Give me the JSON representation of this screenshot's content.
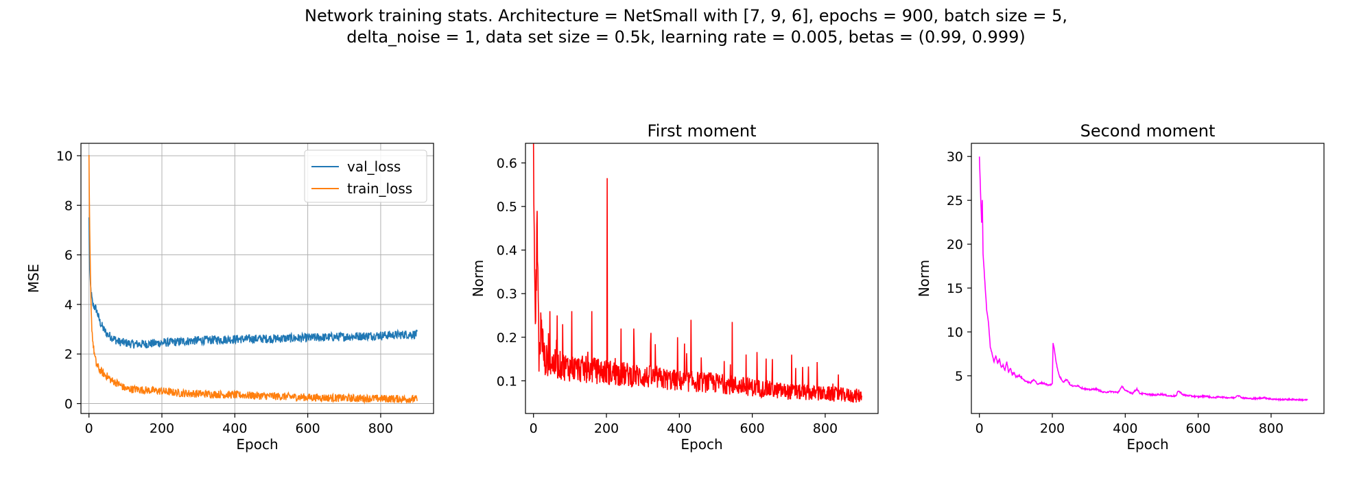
{
  "figure": {
    "suptitle_line1": "Network training stats. Architecture = NetSmall with [7, 9, 6], epochs = 900, batch size = 5,",
    "suptitle_line2": "delta_noise = 1, data set size = 0.5k, learning rate = 0.005, betas = (0.99, 0.999)"
  },
  "chart_data": [
    {
      "type": "line",
      "title": "",
      "xlabel": "Epoch",
      "ylabel": "MSE",
      "xlim": [
        -22,
        945
      ],
      "ylim": [
        -0.4,
        10.5
      ],
      "xticks": [
        0,
        200,
        400,
        600,
        800
      ],
      "yticks": [
        0,
        2,
        4,
        6,
        8,
        10
      ],
      "grid": true,
      "legend": "top-right",
      "series": [
        {
          "name": "val_loss",
          "color": "#1f77b4",
          "x": [
            0,
            2,
            5,
            10,
            15,
            20,
            30,
            40,
            50,
            60,
            80,
            100,
            120,
            150,
            200,
            250,
            300,
            400,
            500,
            600,
            700,
            800,
            900
          ],
          "y": [
            7.5,
            5.4,
            4.6,
            4.0,
            3.9,
            3.8,
            3.3,
            3.0,
            2.8,
            2.7,
            2.5,
            2.45,
            2.4,
            2.4,
            2.45,
            2.5,
            2.55,
            2.6,
            2.62,
            2.65,
            2.7,
            2.75,
            2.8
          ],
          "noise": 0.18
        },
        {
          "name": "train_loss",
          "color": "#ff7f0e",
          "x": [
            0,
            2,
            5,
            8,
            12,
            16,
            20,
            30,
            40,
            50,
            60,
            80,
            100,
            150,
            200,
            250,
            300,
            400,
            500,
            600,
            700,
            800,
            900
          ],
          "y": [
            10.0,
            7.0,
            4.4,
            3.0,
            2.3,
            1.9,
            1.6,
            1.35,
            1.2,
            1.1,
            0.95,
            0.8,
            0.6,
            0.55,
            0.5,
            0.42,
            0.4,
            0.35,
            0.3,
            0.25,
            0.22,
            0.2,
            0.18
          ],
          "noise": 0.16
        }
      ]
    },
    {
      "type": "line",
      "title": "First moment",
      "xlabel": "Epoch",
      "ylabel": "Norm",
      "xlim": [
        -22,
        945
      ],
      "ylim": [
        0.025,
        0.645
      ],
      "xticks": [
        0,
        200,
        400,
        600,
        800
      ],
      "yticks": [
        0.1,
        0.2,
        0.3,
        0.4,
        0.5,
        0.6
      ],
      "yticklabels": [
        "0.1",
        "0.2",
        "0.3",
        "0.4",
        "0.5",
        "0.6"
      ],
      "grid": false,
      "series": [
        {
          "name": "",
          "color": "#ff0000",
          "x": [
            0,
            3,
            6,
            10,
            15,
            20,
            30,
            50,
            100,
            150,
            200,
            250,
            300,
            400,
            500,
            600,
            700,
            800,
            900
          ],
          "y": [
            0.62,
            0.35,
            0.23,
            0.49,
            0.15,
            0.22,
            0.15,
            0.14,
            0.13,
            0.125,
            0.12,
            0.115,
            0.11,
            0.1,
            0.095,
            0.085,
            0.075,
            0.07,
            0.065
          ],
          "noise": 0.03,
          "spikes": [
            [
              5,
              0.23
            ],
            [
              10,
              0.49
            ],
            [
              25,
              0.22
            ],
            [
              45,
              0.26
            ],
            [
              65,
              0.25
            ],
            [
              80,
              0.23
            ],
            [
              105,
              0.26
            ],
            [
              160,
              0.26
            ],
            [
              202,
              0.565
            ],
            [
              240,
              0.22
            ],
            [
              275,
              0.22
            ],
            [
              322,
              0.21
            ],
            [
              395,
              0.2
            ],
            [
              432,
              0.24
            ],
            [
              545,
              0.235
            ],
            [
              655,
              0.15
            ],
            [
              708,
              0.16
            ]
          ]
        }
      ]
    },
    {
      "type": "line",
      "title": "Second moment",
      "xlabel": "Epoch",
      "ylabel": "Norm",
      "xlim": [
        -22,
        945
      ],
      "ylim": [
        0.7,
        31.5
      ],
      "xticks": [
        0,
        200,
        400,
        600,
        800
      ],
      "yticks": [
        5,
        10,
        15,
        20,
        25,
        30
      ],
      "grid": false,
      "series": [
        {
          "name": "",
          "color": "#ff00ff",
          "x": [
            0,
            3,
            6,
            8,
            10,
            13,
            16,
            20,
            25,
            30,
            35,
            40,
            45,
            50,
            55,
            60,
            65,
            70,
            75,
            80,
            85,
            90,
            95,
            100,
            110,
            120,
            130,
            140,
            150,
            160,
            170,
            180,
            190,
            200,
            202,
            205,
            210,
            215,
            220,
            230,
            240,
            250,
            260,
            270,
            280,
            300,
            320,
            340,
            360,
            380,
            392,
            400,
            420,
            432,
            440,
            460,
            480,
            500,
            520,
            540,
            545,
            560,
            580,
            600,
            620,
            640,
            660,
            680,
            700,
            708,
            720,
            740,
            760,
            780,
            800,
            820,
            840,
            860,
            880,
            900
          ],
          "y": [
            30.0,
            26.0,
            22.5,
            25.0,
            19.0,
            17.0,
            15.0,
            12.5,
            11.0,
            8.2,
            7.5,
            6.6,
            7.3,
            6.4,
            6.9,
            5.9,
            6.2,
            5.6,
            6.6,
            5.4,
            5.9,
            5.1,
            5.4,
            4.9,
            5.0,
            4.6,
            4.3,
            4.2,
            4.6,
            4.0,
            4.2,
            4.1,
            3.9,
            4.1,
            8.7,
            8.2,
            6.7,
            5.6,
            4.9,
            4.3,
            4.6,
            3.9,
            3.8,
            3.9,
            3.6,
            3.4,
            3.5,
            3.1,
            3.2,
            3.1,
            3.8,
            3.3,
            3.0,
            3.5,
            3.0,
            2.9,
            2.8,
            2.9,
            2.7,
            2.7,
            3.3,
            2.8,
            2.7,
            2.6,
            2.7,
            2.5,
            2.6,
            2.5,
            2.5,
            2.8,
            2.5,
            2.4,
            2.4,
            2.5,
            2.35,
            2.3,
            2.3,
            2.3,
            2.25,
            2.25
          ],
          "noise": 0.08
        }
      ]
    }
  ]
}
